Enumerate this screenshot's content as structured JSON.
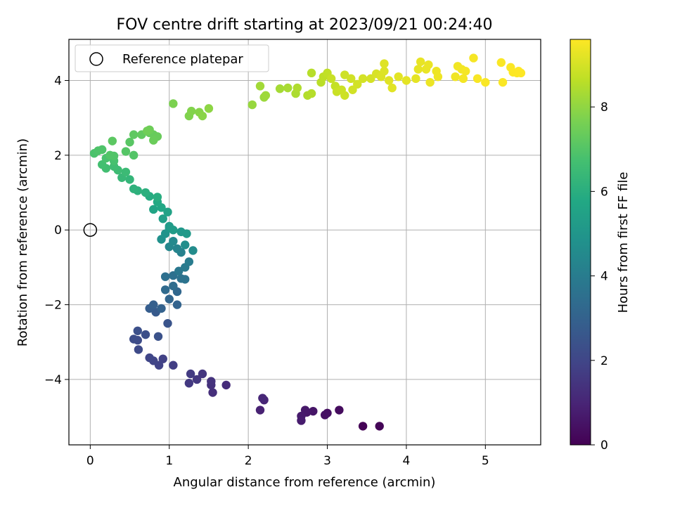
{
  "chart_data": {
    "type": "scatter",
    "title": "FOV centre drift starting at 2023/09/21 00:24:40",
    "xlabel": "Angular distance from reference (arcmin)",
    "ylabel": "Rotation from reference (arcmin)",
    "xlim": [
      -0.27,
      5.7
    ],
    "ylim": [
      -5.75,
      5.1
    ],
    "xticks": [
      "0",
      "1",
      "2",
      "3",
      "4",
      "5"
    ],
    "yticks": [
      "−4",
      "−2",
      "0",
      "2",
      "4"
    ],
    "grid": true,
    "legend": {
      "placement": "upper left",
      "entries": [
        "Reference platepar"
      ]
    },
    "reference_point": {
      "x": 0,
      "y": 0,
      "marker": "open-circle"
    },
    "colorbar": {
      "label": "Hours from first FF file",
      "colormap": "viridis",
      "range": [
        0,
        9.6
      ],
      "ticks": [
        "0",
        "2",
        "4",
        "6",
        "8"
      ]
    },
    "series": [
      {
        "colored_by": "hours",
        "points": [
          [
            3.45,
            -5.25,
            0.05
          ],
          [
            3.66,
            -5.25,
            0.1
          ],
          [
            3.15,
            -4.82,
            0.3
          ],
          [
            3.0,
            -4.9,
            0.4
          ],
          [
            2.97,
            -4.95,
            0.45
          ],
          [
            2.82,
            -4.85,
            0.55
          ],
          [
            2.74,
            -4.88,
            0.6
          ],
          [
            2.72,
            -4.82,
            0.65
          ],
          [
            2.67,
            -4.98,
            0.7
          ],
          [
            2.67,
            -5.1,
            0.75
          ],
          [
            2.15,
            -4.82,
            0.9
          ],
          [
            2.2,
            -4.55,
            1.0
          ],
          [
            2.18,
            -4.5,
            1.05
          ],
          [
            1.72,
            -4.15,
            1.2
          ],
          [
            1.55,
            -4.35,
            1.3
          ],
          [
            1.53,
            -4.15,
            1.35
          ],
          [
            1.53,
            -4.05,
            1.4
          ],
          [
            1.42,
            -3.85,
            1.5
          ],
          [
            1.35,
            -4.0,
            1.55
          ],
          [
            1.25,
            -4.1,
            1.6
          ],
          [
            1.27,
            -3.85,
            1.65
          ],
          [
            1.05,
            -3.62,
            1.75
          ],
          [
            0.92,
            -3.45,
            1.85
          ],
          [
            0.87,
            -3.62,
            1.9
          ],
          [
            0.8,
            -3.5,
            1.95
          ],
          [
            0.75,
            -3.42,
            2.0
          ],
          [
            0.61,
            -3.2,
            2.15
          ],
          [
            0.6,
            -2.95,
            2.2
          ],
          [
            0.55,
            -2.92,
            2.25
          ],
          [
            0.7,
            -2.8,
            2.3
          ],
          [
            0.6,
            -2.7,
            2.35
          ],
          [
            0.86,
            -2.85,
            2.4
          ],
          [
            0.98,
            -2.5,
            2.5
          ],
          [
            0.83,
            -2.2,
            2.7
          ],
          [
            0.75,
            -2.1,
            2.8
          ],
          [
            0.8,
            -2.0,
            2.9
          ],
          [
            0.9,
            -2.1,
            3.0
          ],
          [
            1.1,
            -2.0,
            3.05
          ],
          [
            1.0,
            -1.85,
            3.1
          ],
          [
            1.1,
            -1.65,
            3.2
          ],
          [
            0.95,
            -1.6,
            3.3
          ],
          [
            1.05,
            -1.5,
            3.4
          ],
          [
            0.95,
            -1.25,
            3.5
          ],
          [
            1.05,
            -1.22,
            3.55
          ],
          [
            1.15,
            -1.3,
            3.6
          ],
          [
            1.2,
            -1.32,
            3.65
          ],
          [
            1.12,
            -1.1,
            3.8
          ],
          [
            1.2,
            -1.0,
            3.9
          ],
          [
            1.25,
            -0.85,
            4.0
          ],
          [
            1.15,
            -0.6,
            4.2
          ],
          [
            1.1,
            -0.5,
            4.3
          ],
          [
            1.0,
            -0.45,
            4.4
          ],
          [
            1.05,
            -0.3,
            4.5
          ],
          [
            1.3,
            -0.55,
            4.6
          ],
          [
            1.2,
            -0.4,
            4.7
          ],
          [
            0.9,
            -0.25,
            4.8
          ],
          [
            0.95,
            -0.1,
            4.9
          ],
          [
            1.0,
            0.05,
            5.0
          ],
          [
            1.15,
            -0.05,
            5.1
          ],
          [
            1.22,
            -0.1,
            5.15
          ],
          [
            1.0,
            0.1,
            5.2
          ],
          [
            1.05,
            0.0,
            5.25
          ],
          [
            0.92,
            0.3,
            5.4
          ],
          [
            0.98,
            0.48,
            5.5
          ],
          [
            0.8,
            0.55,
            5.6
          ],
          [
            0.9,
            0.6,
            5.7
          ],
          [
            0.85,
            0.75,
            5.8
          ],
          [
            0.75,
            0.9,
            5.9
          ],
          [
            0.85,
            0.88,
            5.95
          ],
          [
            0.7,
            1.0,
            6.05
          ],
          [
            0.6,
            1.05,
            6.1
          ],
          [
            0.55,
            1.1,
            6.15
          ],
          [
            0.5,
            1.35,
            6.3
          ],
          [
            0.4,
            1.4,
            6.4
          ],
          [
            0.45,
            1.55,
            6.5
          ],
          [
            0.35,
            1.6,
            6.55
          ],
          [
            0.3,
            1.7,
            6.6
          ],
          [
            0.2,
            1.65,
            6.65
          ],
          [
            0.15,
            1.75,
            6.7
          ],
          [
            0.3,
            1.85,
            6.75
          ],
          [
            0.2,
            1.92,
            6.8
          ],
          [
            0.05,
            2.05,
            6.85
          ],
          [
            0.1,
            2.12,
            6.9
          ],
          [
            0.15,
            2.15,
            6.92
          ],
          [
            0.3,
            1.98,
            6.95
          ],
          [
            0.25,
            2.0,
            6.97
          ],
          [
            0.55,
            2.0,
            7.0
          ],
          [
            0.45,
            2.1,
            7.02
          ],
          [
            0.5,
            2.35,
            7.1
          ],
          [
            0.28,
            2.38,
            7.15
          ],
          [
            0.55,
            2.55,
            7.2
          ],
          [
            0.65,
            2.55,
            7.25
          ],
          [
            0.75,
            2.6,
            7.3
          ],
          [
            0.8,
            2.55,
            7.35
          ],
          [
            0.85,
            2.5,
            7.38
          ],
          [
            0.8,
            2.4,
            7.4
          ],
          [
            0.75,
            2.68,
            7.45
          ],
          [
            0.72,
            2.65,
            7.5
          ],
          [
            1.05,
            3.38,
            7.7
          ],
          [
            1.25,
            3.05,
            7.75
          ],
          [
            1.28,
            3.18,
            7.8
          ],
          [
            1.38,
            3.15,
            7.85
          ],
          [
            1.42,
            3.05,
            7.9
          ],
          [
            1.5,
            3.25,
            7.95
          ],
          [
            2.05,
            3.35,
            8.1
          ],
          [
            2.2,
            3.55,
            8.15
          ],
          [
            2.22,
            3.6,
            8.2
          ],
          [
            2.15,
            3.85,
            8.25
          ],
          [
            2.4,
            3.78,
            8.3
          ],
          [
            2.5,
            3.8,
            8.35
          ],
          [
            2.6,
            3.65,
            8.4
          ],
          [
            2.62,
            3.8,
            8.45
          ],
          [
            2.75,
            3.6,
            8.5
          ],
          [
            2.8,
            3.65,
            8.52
          ],
          [
            2.8,
            4.2,
            8.55
          ],
          [
            2.92,
            3.95,
            8.6
          ],
          [
            2.95,
            4.1,
            8.65
          ],
          [
            3.0,
            4.2,
            8.7
          ],
          [
            3.1,
            3.85,
            8.75
          ],
          [
            3.05,
            4.05,
            8.8
          ],
          [
            3.12,
            3.7,
            8.82
          ],
          [
            3.18,
            3.75,
            8.85
          ],
          [
            3.22,
            3.6,
            8.88
          ],
          [
            3.22,
            4.15,
            8.9
          ],
          [
            3.3,
            4.05,
            8.92
          ],
          [
            3.32,
            3.75,
            8.94
          ],
          [
            3.38,
            3.9,
            8.96
          ],
          [
            3.45,
            4.05,
            8.98
          ],
          [
            3.55,
            4.05,
            9.0
          ],
          [
            3.62,
            4.18,
            9.05
          ],
          [
            3.68,
            4.1,
            9.1
          ],
          [
            3.72,
            4.25,
            9.12
          ],
          [
            3.72,
            4.45,
            9.14
          ],
          [
            3.78,
            4.0,
            9.16
          ],
          [
            3.82,
            3.8,
            9.18
          ],
          [
            3.9,
            4.1,
            9.2
          ],
          [
            4.0,
            4.0,
            9.22
          ],
          [
            4.12,
            4.05,
            9.24
          ],
          [
            4.15,
            4.3,
            9.26
          ],
          [
            4.18,
            4.5,
            9.28
          ],
          [
            4.25,
            4.3,
            9.3
          ],
          [
            4.28,
            4.42,
            9.32
          ],
          [
            4.3,
            3.95,
            9.34
          ],
          [
            4.38,
            4.25,
            9.36
          ],
          [
            4.4,
            4.1,
            9.38
          ],
          [
            4.62,
            4.1,
            9.4
          ],
          [
            4.65,
            4.38,
            9.42
          ],
          [
            4.7,
            4.3,
            9.44
          ],
          [
            4.72,
            4.05,
            9.46
          ],
          [
            4.75,
            4.25,
            9.48
          ],
          [
            4.85,
            4.6,
            9.5
          ],
          [
            4.9,
            4.05,
            9.52
          ],
          [
            5.0,
            3.95,
            9.54
          ],
          [
            5.2,
            4.48,
            9.55
          ],
          [
            5.22,
            3.95,
            9.56
          ],
          [
            5.32,
            4.35,
            9.57
          ],
          [
            5.35,
            4.22,
            9.58
          ],
          [
            5.4,
            4.2,
            9.59
          ],
          [
            5.45,
            4.2,
            9.6
          ],
          [
            5.42,
            4.25,
            9.6
          ]
        ]
      }
    ]
  }
}
